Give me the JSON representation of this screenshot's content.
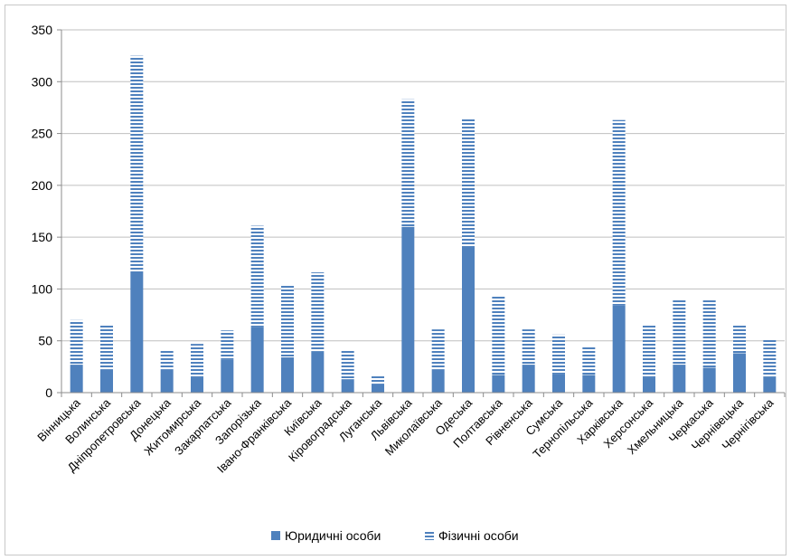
{
  "chart_data": {
    "type": "bar",
    "stacked": true,
    "categories": [
      "Вінницька",
      "Волинська",
      "Дніпропетровська",
      "Донецька",
      "Житомирська",
      "Закарпатська",
      "Запорізька",
      "Івано-Франківська",
      "Київська",
      "Кіровоградська",
      "Луганська",
      "Львівська",
      "Миколаївська",
      "Одеська",
      "Полтавська",
      "Рівненська",
      "Сумська",
      "Тернопільська",
      "Харківська",
      "Херсонська",
      "Хмельницька",
      "Черкаська",
      "Чернівецька",
      "Чернігівська"
    ],
    "series": [
      {
        "name": "Юридичні особи",
        "values": [
          27,
          22,
          117,
          22,
          14,
          32,
          63,
          34,
          40,
          13,
          8,
          160,
          22,
          141,
          17,
          27,
          18,
          17,
          84,
          14,
          27,
          24,
          38,
          15
        ],
        "color": "#4f81bd",
        "style": "solid"
      },
      {
        "name": "Фізичні особи",
        "values": [
          43,
          43,
          208,
          19,
          33,
          28,
          98,
          70,
          76,
          28,
          9,
          123,
          39,
          123,
          76,
          34,
          38,
          28,
          179,
          51,
          62,
          65,
          27,
          36
        ],
        "color": "#4f81bd",
        "style": "striped"
      }
    ],
    "ylim": [
      0,
      350
    ],
    "yticks": [
      "0",
      "50",
      "100",
      "150",
      "200",
      "250",
      "300",
      "350"
    ],
    "grid": true,
    "legend_position": "bottom"
  }
}
